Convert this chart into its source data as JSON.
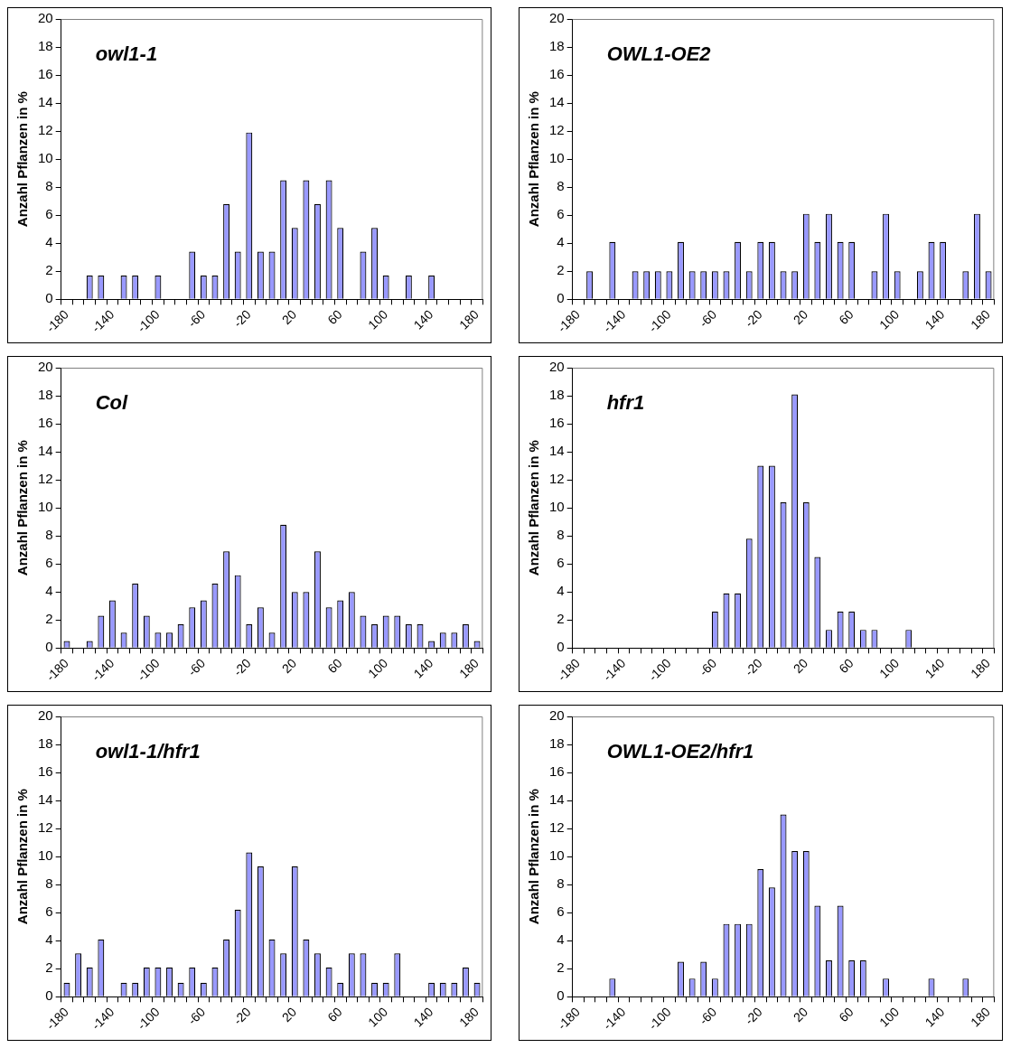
{
  "chart_data": [
    {
      "type": "bar",
      "title": "owl1-1",
      "ylabel": "Anzahl Pflanzen in %",
      "categories": [
        "-180",
        null,
        null,
        null,
        "-140",
        null,
        null,
        null,
        "-100",
        null,
        null,
        null,
        "-60",
        null,
        null,
        null,
        "-20",
        null,
        null,
        null,
        "20",
        null,
        null,
        null,
        "60",
        null,
        null,
        null,
        "100",
        null,
        null,
        null,
        "140",
        null,
        null,
        null,
        "180"
      ],
      "color": "#9999ff",
      "values": [
        0,
        0,
        1.7,
        1.7,
        0,
        1.7,
        1.7,
        0,
        1.7,
        0,
        0,
        3.4,
        1.7,
        1.7,
        6.8,
        3.4,
        11.9,
        3.4,
        3.4,
        8.5,
        5.1,
        8.5,
        6.8,
        8.5,
        5.1,
        0,
        3.4,
        5.1,
        1.7,
        0,
        1.7,
        0,
        1.7,
        0,
        0,
        0,
        0
      ],
      "ylim": [
        0,
        20
      ],
      "yticks": [
        0,
        2,
        4,
        6,
        8,
        10,
        12,
        14,
        16,
        18,
        20
      ],
      "grid": false
    },
    {
      "type": "bar",
      "title": "OWL1-OE2",
      "ylabel": "Anzahl Pflanzen in %",
      "categories": [
        "-180",
        null,
        null,
        null,
        "-140",
        null,
        null,
        null,
        "-100",
        null,
        null,
        null,
        "-60",
        null,
        null,
        null,
        "-20",
        null,
        null,
        null,
        "20",
        null,
        null,
        null,
        "60",
        null,
        null,
        null,
        "100",
        null,
        null,
        null,
        "140",
        null,
        null,
        null,
        "180"
      ],
      "color": "#9999ff",
      "values": [
        0,
        2.0,
        0,
        4.1,
        0,
        2.0,
        2.0,
        2.0,
        2.0,
        4.1,
        2.0,
        2.0,
        2.0,
        2.0,
        4.1,
        2.0,
        4.1,
        4.1,
        2.0,
        2.0,
        6.1,
        4.1,
        6.1,
        4.1,
        4.1,
        0,
        2.0,
        6.1,
        2.0,
        0,
        2.0,
        4.1,
        4.1,
        0,
        2.0,
        6.1,
        2.0
      ],
      "ylim": [
        0,
        20
      ],
      "yticks": [
        0,
        2,
        4,
        6,
        8,
        10,
        12,
        14,
        16,
        18,
        20
      ],
      "grid": false
    },
    {
      "type": "bar",
      "title": "Col",
      "ylabel": "Anzahl Pflanzen in %",
      "categories": [
        "-180",
        null,
        null,
        null,
        "-140",
        null,
        null,
        null,
        "-100",
        null,
        null,
        null,
        "-60",
        null,
        null,
        null,
        "-20",
        null,
        null,
        null,
        "20",
        null,
        null,
        null,
        "60",
        null,
        null,
        null,
        "100",
        null,
        null,
        null,
        "140",
        null,
        null,
        null,
        "180"
      ],
      "color": "#9999ff",
      "values": [
        0.5,
        0,
        0.5,
        2.3,
        3.4,
        1.1,
        4.6,
        2.3,
        1.1,
        1.1,
        1.7,
        2.9,
        3.4,
        4.6,
        6.9,
        5.2,
        1.7,
        2.9,
        1.1,
        8.8,
        4.0,
        4.0,
        6.9,
        2.9,
        3.4,
        4.0,
        2.3,
        1.7,
        2.3,
        2.3,
        1.7,
        1.7,
        0.5,
        1.1,
        1.1,
        1.7,
        0.5
      ],
      "ylim": [
        0,
        20
      ],
      "yticks": [
        0,
        2,
        4,
        6,
        8,
        10,
        12,
        14,
        16,
        18,
        20
      ],
      "grid": false
    },
    {
      "type": "bar",
      "title": "hfr1",
      "ylabel": "Anzahl Pflanzen in %",
      "categories": [
        "-180",
        null,
        null,
        null,
        "-140",
        null,
        null,
        null,
        "-100",
        null,
        null,
        null,
        "-60",
        null,
        null,
        null,
        "-20",
        null,
        null,
        null,
        "20",
        null,
        null,
        null,
        "60",
        null,
        null,
        null,
        "100",
        null,
        null,
        null,
        "140",
        null,
        null,
        null,
        "180"
      ],
      "color": "#9999ff",
      "values": [
        0,
        0,
        0,
        0,
        0,
        0,
        0,
        0,
        0,
        0,
        0,
        0,
        2.6,
        3.9,
        3.9,
        7.8,
        13.0,
        13.0,
        10.4,
        18.1,
        10.4,
        6.5,
        1.3,
        2.6,
        2.6,
        1.3,
        1.3,
        0,
        0,
        1.3,
        0,
        0,
        0,
        0,
        0,
        0,
        0
      ],
      "ylim": [
        0,
        20
      ],
      "yticks": [
        0,
        2,
        4,
        6,
        8,
        10,
        12,
        14,
        16,
        18,
        20
      ],
      "grid": false
    },
    {
      "type": "bar",
      "title": "owl1-1/hfr1",
      "ylabel": "Anzahl Pflanzen in %",
      "categories": [
        "-180",
        null,
        null,
        null,
        "-140",
        null,
        null,
        null,
        "-100",
        null,
        null,
        null,
        "-60",
        null,
        null,
        null,
        "-20",
        null,
        null,
        null,
        "20",
        null,
        null,
        null,
        "60",
        null,
        null,
        null,
        "100",
        null,
        null,
        null,
        "140",
        null,
        null,
        null,
        "180"
      ],
      "color": "#9999ff",
      "values": [
        1.0,
        3.1,
        2.1,
        4.1,
        0,
        1.0,
        1.0,
        2.1,
        2.1,
        2.1,
        1.0,
        2.1,
        1.0,
        2.1,
        4.1,
        6.2,
        10.3,
        9.3,
        4.1,
        3.1,
        9.3,
        4.1,
        3.1,
        2.1,
        1.0,
        3.1,
        3.1,
        1.0,
        1.0,
        3.1,
        0,
        0,
        1.0,
        1.0,
        1.0,
        2.1,
        1.0
      ],
      "ylim": [
        0,
        20
      ],
      "yticks": [
        0,
        2,
        4,
        6,
        8,
        10,
        12,
        14,
        16,
        18,
        20
      ],
      "grid": false
    },
    {
      "type": "bar",
      "title": "OWL1-OE2/hfr1",
      "ylabel": "Anzahl Pflanzen in %",
      "categories": [
        "-180",
        null,
        null,
        null,
        "-140",
        null,
        null,
        null,
        "-100",
        null,
        null,
        null,
        "-60",
        null,
        null,
        null,
        "-20",
        null,
        null,
        null,
        "20",
        null,
        null,
        null,
        "60",
        null,
        null,
        null,
        "100",
        null,
        null,
        null,
        "140",
        null,
        null,
        null,
        "180"
      ],
      "color": "#9999ff",
      "values": [
        0,
        0,
        0,
        1.3,
        0,
        0,
        0,
        0,
        0,
        2.5,
        1.3,
        2.5,
        1.3,
        5.2,
        5.2,
        5.2,
        9.1,
        7.8,
        13.0,
        10.4,
        10.4,
        6.5,
        2.6,
        6.5,
        2.6,
        2.6,
        0,
        1.3,
        0,
        0,
        0,
        1.3,
        0,
        0,
        1.3,
        0,
        0
      ],
      "ylim": [
        0,
        20
      ],
      "yticks": [
        0,
        2,
        4,
        6,
        8,
        10,
        12,
        14,
        16,
        18,
        20
      ],
      "grid": false
    }
  ]
}
